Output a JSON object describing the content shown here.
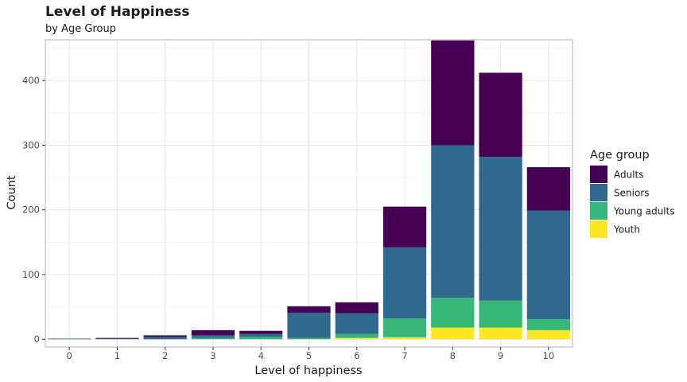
{
  "chart_data": {
    "type": "bar",
    "stacked": true,
    "title": "Level of Happiness",
    "subtitle": "by Age Group",
    "xlabel": "Level of happiness",
    "ylabel": "Count",
    "categories": [
      "0",
      "1",
      "2",
      "3",
      "4",
      "5",
      "6",
      "7",
      "8",
      "9",
      "10"
    ],
    "ylim": [
      -12,
      463
    ],
    "yticks": [
      0,
      100,
      200,
      300,
      400
    ],
    "grid": true,
    "legend": {
      "title": "Age group",
      "position": "right"
    },
    "series": [
      {
        "name": "Youth",
        "color": "#FDE725",
        "values": [
          0,
          0,
          0,
          0,
          0,
          0,
          2,
          3,
          18,
          18,
          14
        ]
      },
      {
        "name": "Young adults",
        "color": "#35B779",
        "values": [
          0,
          0,
          0,
          2,
          4,
          2,
          6,
          29,
          46,
          42,
          17
        ]
      },
      {
        "name": "Seniors",
        "color": "#31688E",
        "values": [
          1,
          1,
          4,
          4,
          4,
          39,
          32,
          110,
          236,
          222,
          168
        ]
      },
      {
        "name": "Adults",
        "color": "#440154",
        "values": [
          0,
          1,
          2,
          8,
          5,
          10,
          17,
          63,
          162,
          130,
          67
        ]
      }
    ],
    "legend_order": [
      "Adults",
      "Seniors",
      "Young adults",
      "Youth"
    ]
  }
}
